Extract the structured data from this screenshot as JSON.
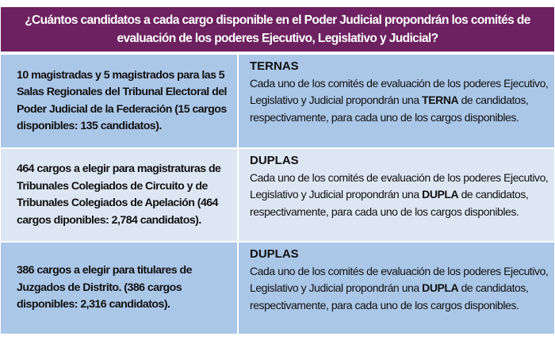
{
  "title": "¿Cuántos candidatos a cada cargo disponible en el Poder Judicial propondrán los comités de evaluación de los poderes Ejecutivo, Legislativo y Judicial?",
  "colors": {
    "header": "#6d2160",
    "row_dark": "#abc7e8",
    "row_light": "#dde7f4"
  },
  "rows": [
    {
      "left": "10 magistradas y 5 magistrados para las 5 Salas Regionales del Tribunal Electoral del Poder Judicial de la Federación (15 cargos disponibles: 135 candidatos).",
      "heading": "TERNAS",
      "text_before": "Cada uno de los comités de evaluación de los poderes Ejecutivo, Legislativo y Judicial propondrán una ",
      "emphasis": "TERNA",
      "text_after": " de candidatos, respectivamente, para cada uno de los cargos disponibles."
    },
    {
      "left": "464 cargos a elegir para magistraturas de Tribunales Colegiados de Circuito y de Tribunales Colegiados de Apelación (464 cargos diponibles: 2,784 candidatos).",
      "heading": "DUPLAS",
      "text_before": "Cada uno de los comités de evaluación de los poderes Ejecutivo, Legislativo y Judicial propondrán una ",
      "emphasis": "DUPLA",
      "text_after": " de candidatos, respectivamente, para cada uno de los cargos disponibles."
    },
    {
      "left": "386 cargos a elegir para titulares de Juzgados de Distrito. (386 cargos disponibles: 2,316 candidatos).",
      "heading": "DUPLAS",
      "text_before": "Cada uno de los comités de evaluación de los poderes Ejecutivo, Legislativo y Judicial propondrán una ",
      "emphasis": "DUPLA",
      "text_after": " de candidatos, respectivamente, para cada uno de los cargos disponibles."
    }
  ]
}
